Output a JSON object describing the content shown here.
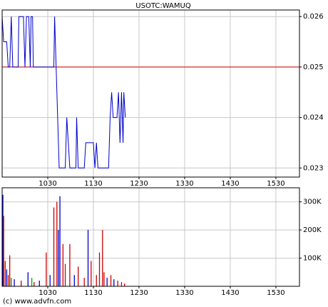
{
  "chart_data": [
    {
      "type": "line",
      "title": "USOTC:WAMUQ",
      "color": "#0000cc",
      "reference_line": 0.025,
      "reference_color": "#cc0000",
      "x": [
        570,
        572,
        576,
        578,
        580,
        582,
        584,
        591,
        592,
        598,
        600,
        602,
        605,
        607,
        608,
        610,
        611,
        638,
        639,
        641,
        643,
        645,
        653,
        655,
        657,
        659,
        667,
        668,
        670,
        678,
        680,
        690,
        692,
        694,
        696,
        710,
        712,
        714,
        716,
        721,
        723,
        725,
        727,
        729,
        730,
        732
      ],
      "values": [
        0.026,
        0.0255,
        0.0255,
        0.025,
        0.025,
        0.026,
        0.025,
        0.025,
        0.026,
        0.026,
        0.025,
        0.026,
        0.026,
        0.025,
        0.026,
        0.026,
        0.025,
        0.025,
        0.026,
        0.025,
        0.024,
        0.023,
        0.023,
        0.024,
        0.0235,
        0.023,
        0.023,
        0.024,
        0.023,
        0.023,
        0.0235,
        0.0235,
        0.023,
        0.0235,
        0.023,
        0.023,
        0.024,
        0.0245,
        0.024,
        0.024,
        0.0245,
        0.0235,
        0.0245,
        0.0235,
        0.0245,
        0.024
      ],
      "xlim": [
        570,
        961
      ],
      "xticks": [
        {
          "value": 630,
          "label": "1030"
        },
        {
          "value": 690,
          "label": "1130"
        },
        {
          "value": 750,
          "label": "1230"
        },
        {
          "value": 810,
          "label": "1330"
        },
        {
          "value": 870,
          "label": "1430"
        },
        {
          "value": 930,
          "label": "1530"
        }
      ],
      "ylim": [
        0.02282,
        0.02613
      ],
      "yticks": [
        0.023,
        0.024,
        0.025,
        0.026
      ],
      "grid": true
    },
    {
      "type": "bar",
      "x": [
        571,
        572,
        574,
        576,
        578,
        580,
        582,
        586,
        595,
        604,
        609,
        612,
        619,
        628,
        633,
        638,
        642,
        644,
        646,
        650,
        653,
        659,
        665,
        670,
        678,
        683,
        687,
        694,
        698,
        702,
        704,
        708,
        713,
        717,
        722,
        727,
        731
      ],
      "values": [
        325000,
        250000,
        90000,
        60000,
        40000,
        110000,
        30000,
        25000,
        20000,
        50000,
        30000,
        15000,
        20000,
        120000,
        40000,
        280000,
        300000,
        200000,
        320000,
        150000,
        80000,
        150000,
        40000,
        70000,
        30000,
        200000,
        90000,
        40000,
        120000,
        200000,
        50000,
        30000,
        40000,
        25000,
        20000,
        15000,
        10000
      ],
      "colors": [
        "#0000cc",
        "#cc0000",
        "#cc0000",
        "#0000cc",
        "#cc0000",
        "#cc0000",
        "#00aa00",
        "#0000cc",
        "#cc0000",
        "#0000cc",
        "#00aa00",
        "#cc0000",
        "#0000cc",
        "#cc0000",
        "#0000cc",
        "#cc0000",
        "#cc0000",
        "#0000cc",
        "#0000cc",
        "#cc0000",
        "#cc0000",
        "#cc0000",
        "#0000cc",
        "#cc0000",
        "#cc0000",
        "#0000cc",
        "#cc0000",
        "#cc0000",
        "#cc0000",
        "#cc0000",
        "#cc0000",
        "#0000cc",
        "#cc0000",
        "#0000cc",
        "#cc0000",
        "#cc0000",
        "#cc0000"
      ],
      "xlim": [
        570,
        961
      ],
      "xticks": [
        {
          "value": 630,
          "label": "1030"
        },
        {
          "value": 690,
          "label": "1130"
        },
        {
          "value": 750,
          "label": "1230"
        },
        {
          "value": 810,
          "label": "1330"
        },
        {
          "value": 870,
          "label": "1430"
        },
        {
          "value": 930,
          "label": "1530"
        }
      ],
      "ylim": [
        0,
        350000
      ],
      "yticks": [
        {
          "value": 100000,
          "label": "100K"
        },
        {
          "value": 200000,
          "label": "200K"
        },
        {
          "value": 300000,
          "label": "300K"
        }
      ],
      "grid": true
    }
  ],
  "footer": "(c) www.advfn.com"
}
